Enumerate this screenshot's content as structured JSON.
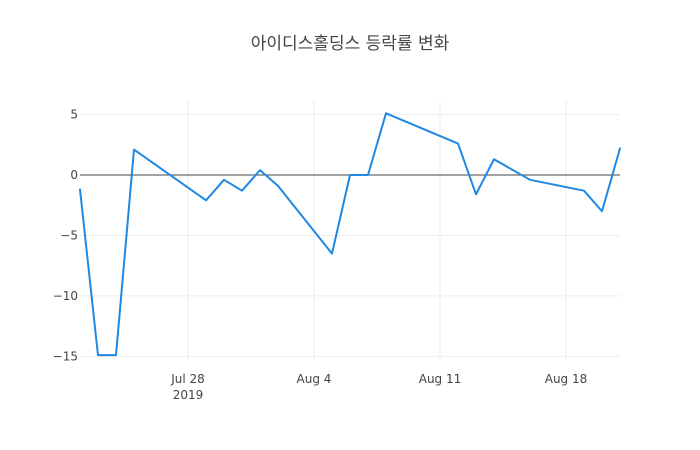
{
  "chart_data": {
    "type": "line",
    "title": "아이디스홀딩스 등락률 변화",
    "xlabel": "",
    "ylabel": "",
    "x_axis": {
      "type": "date",
      "range": [
        "2019-07-22",
        "2019-08-21"
      ],
      "ticks": [
        {
          "date": "2019-07-28",
          "label": "Jul 28",
          "sublabel": "2019"
        },
        {
          "date": "2019-08-04",
          "label": "Aug 4",
          "sublabel": ""
        },
        {
          "date": "2019-08-11",
          "label": "Aug 11",
          "sublabel": ""
        },
        {
          "date": "2019-08-18",
          "label": "Aug 18",
          "sublabel": ""
        }
      ]
    },
    "y_axis": {
      "range": [
        -15.3,
        6.2
      ],
      "ticks": [
        5,
        0,
        -5,
        -10,
        -15
      ],
      "tick_labels": [
        "5",
        "0",
        "−5",
        "−10",
        "−15"
      ],
      "zeroline": true
    },
    "grid": true,
    "legend": "none",
    "series": [
      {
        "color": "#1f88e5",
        "points": [
          {
            "x": "2019-07-22",
            "y": -1.2
          },
          {
            "x": "2019-07-23",
            "y": -14.9
          },
          {
            "x": "2019-07-24",
            "y": -14.9
          },
          {
            "x": "2019-07-25",
            "y": 2.1
          },
          {
            "x": "2019-07-29",
            "y": -2.1
          },
          {
            "x": "2019-07-30",
            "y": -0.4
          },
          {
            "x": "2019-07-31",
            "y": -1.3
          },
          {
            "x": "2019-08-01",
            "y": 0.4
          },
          {
            "x": "2019-08-02",
            "y": -0.9
          },
          {
            "x": "2019-08-05",
            "y": -6.5
          },
          {
            "x": "2019-08-06",
            "y": 0.0
          },
          {
            "x": "2019-08-07",
            "y": 0.0
          },
          {
            "x": "2019-08-08",
            "y": 5.1
          },
          {
            "x": "2019-08-12",
            "y": 2.6
          },
          {
            "x": "2019-08-13",
            "y": -1.6
          },
          {
            "x": "2019-08-14",
            "y": 1.3
          },
          {
            "x": "2019-08-16",
            "y": -0.4
          },
          {
            "x": "2019-08-19",
            "y": -1.3
          },
          {
            "x": "2019-08-20",
            "y": -3.0
          },
          {
            "x": "2019-08-21",
            "y": 2.2
          }
        ]
      }
    ]
  }
}
